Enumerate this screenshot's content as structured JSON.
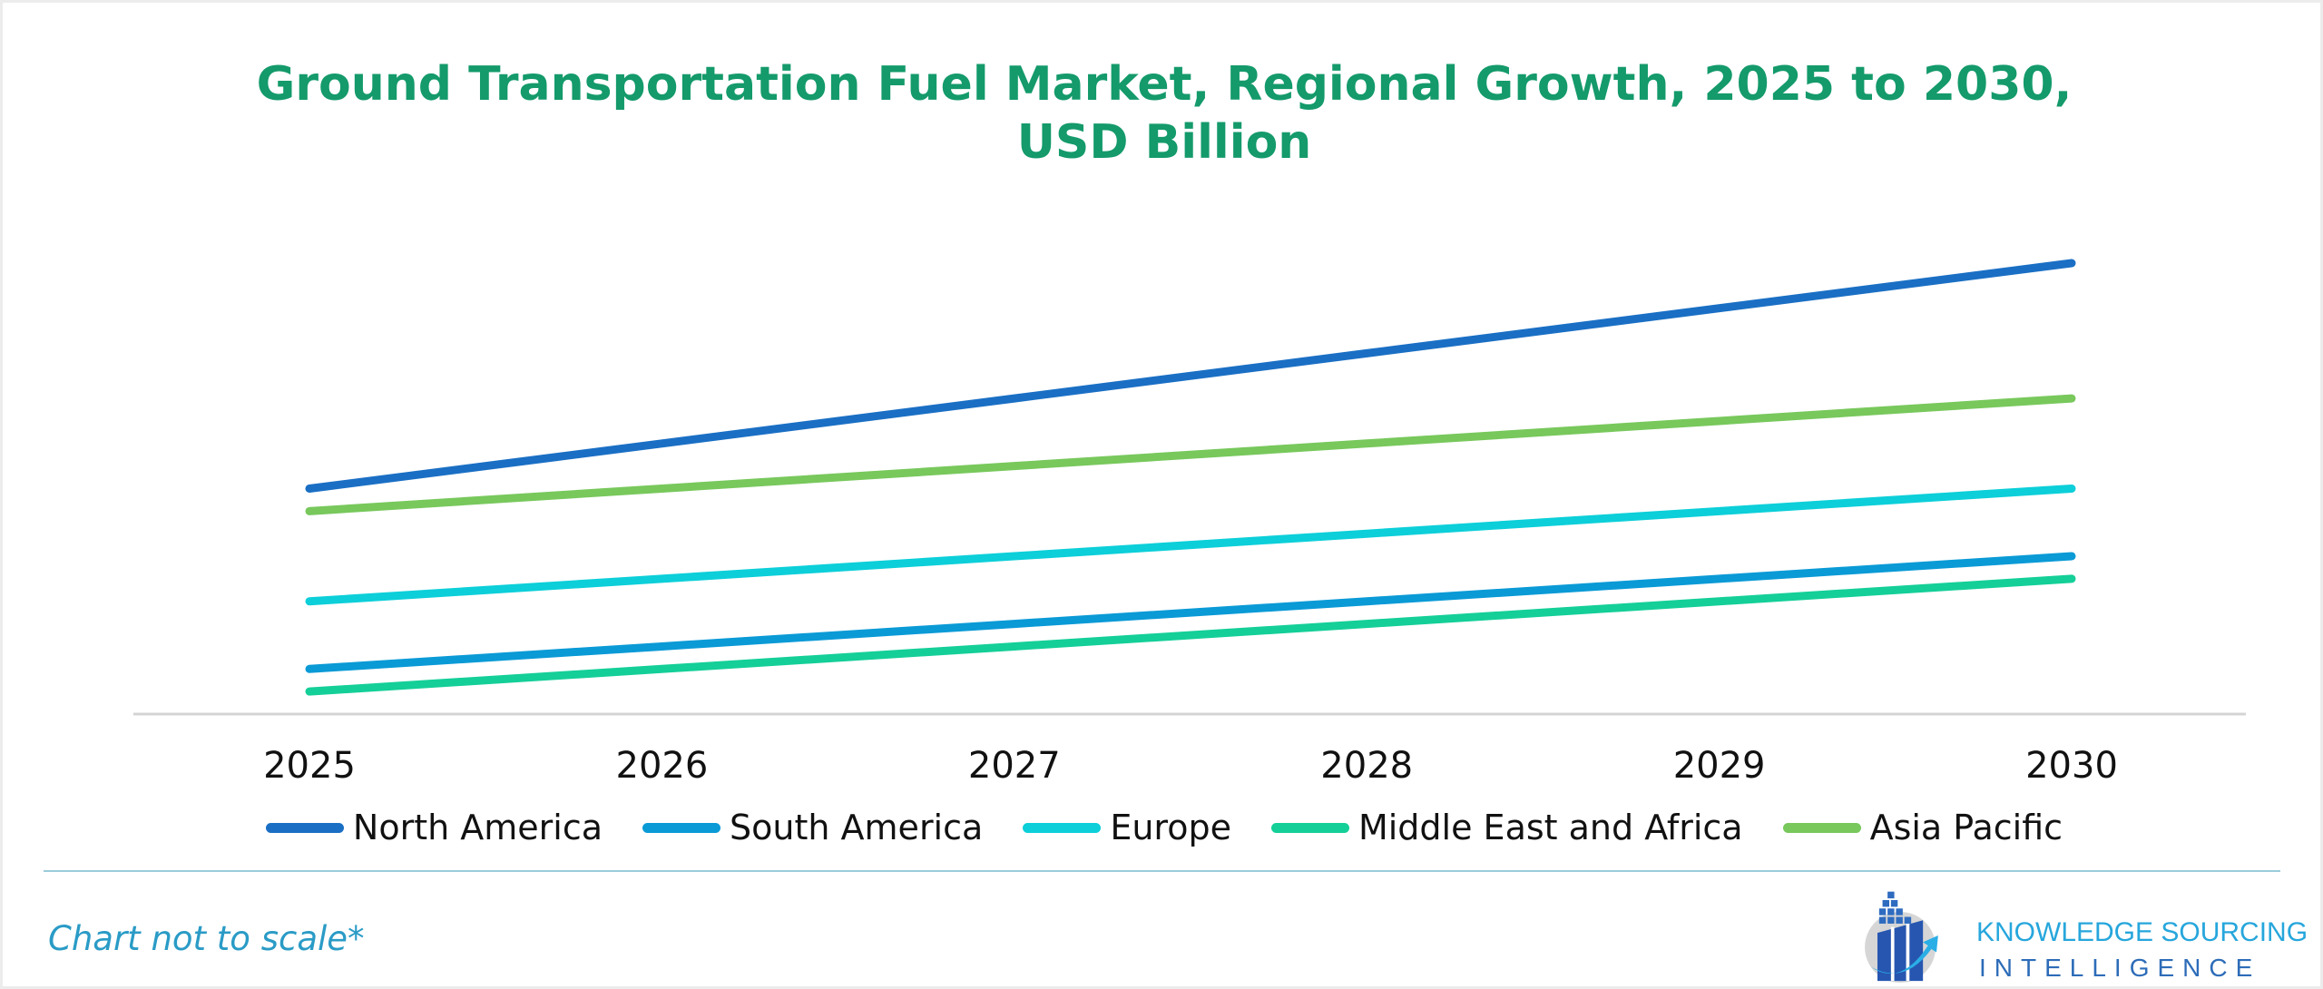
{
  "colors": {
    "title": "#149a6b",
    "note": "#2a9bc6",
    "axis": "#d4d4d4"
  },
  "chart_data": {
    "type": "line",
    "title": "Ground Transportation Fuel Market, Regional Growth, 2025 to 2030, USD Billion",
    "title_lines": [
      "Ground Transportation Fuel Market, Regional Growth, 2025 to 2030,",
      "USD Billion"
    ],
    "categories": [
      "2025",
      "2026",
      "2027",
      "2028",
      "2029",
      "2030"
    ],
    "ylim": [
      0,
      100
    ],
    "y_axis_shown": false,
    "grid": false,
    "legend_placement": "bottom",
    "series": [
      {
        "name": "North America",
        "color": "#1a6fc4",
        "values": [
          50,
          60,
          70,
          80,
          90,
          100
        ]
      },
      {
        "name": "South America",
        "color": "#0a9ad6",
        "values": [
          10,
          15,
          20,
          25,
          30,
          35
        ]
      },
      {
        "name": "Europe",
        "color": "#0ccfd9",
        "values": [
          25,
          30,
          35,
          40,
          45,
          50
        ]
      },
      {
        "name": "Middle East and Africa",
        "color": "#14cf98",
        "values": [
          5,
          10,
          15,
          20,
          25,
          30
        ]
      },
      {
        "name": "Asia Pacific",
        "color": "#78c85c",
        "values": [
          45,
          50,
          55,
          60,
          65,
          70
        ]
      }
    ]
  },
  "footer": {
    "note": "Chart not to scale*"
  },
  "logo": {
    "line1": "KNOWLEDGE SOURCING",
    "line2": "INTELLIGENCE"
  }
}
